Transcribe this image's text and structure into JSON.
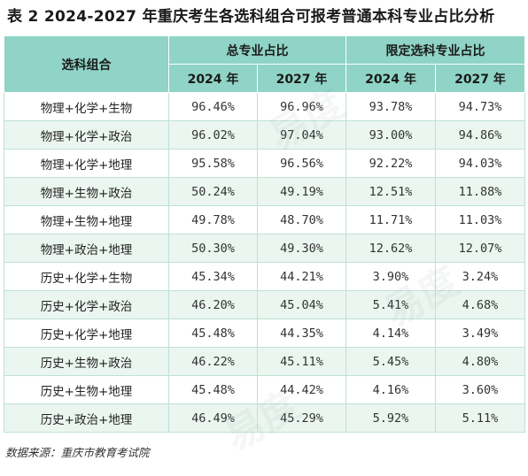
{
  "title": "表 2  2024-2027 年重庆考生各选科组合可报考普通本科专业占比分析",
  "header": {
    "combo_label": "选科组合",
    "group1": "总专业占比",
    "group2": "限定选科专业占比",
    "year_a": "2024 年",
    "year_b": "2027 年"
  },
  "rows": [
    {
      "combo": "物理+化学+生物",
      "total_2024": "96.46%",
      "total_2027": "96.96%",
      "limited_2024": "93.78%",
      "limited_2027": "94.73%"
    },
    {
      "combo": "物理+化学+政治",
      "total_2024": "96.02%",
      "total_2027": "97.04%",
      "limited_2024": "93.00%",
      "limited_2027": "94.86%"
    },
    {
      "combo": "物理+化学+地理",
      "total_2024": "95.58%",
      "total_2027": "96.56%",
      "limited_2024": "92.22%",
      "limited_2027": "94.03%"
    },
    {
      "combo": "物理+生物+政治",
      "total_2024": "50.24%",
      "total_2027": "49.19%",
      "limited_2024": "12.51%",
      "limited_2027": "11.88%"
    },
    {
      "combo": "物理+生物+地理",
      "total_2024": "49.78%",
      "total_2027": "48.70%",
      "limited_2024": "11.71%",
      "limited_2027": "11.03%"
    },
    {
      "combo": "物理+政治+地理",
      "total_2024": "50.30%",
      "total_2027": "49.30%",
      "limited_2024": "12.62%",
      "limited_2027": "12.07%"
    },
    {
      "combo": "历史+化学+生物",
      "total_2024": "45.34%",
      "total_2027": "44.21%",
      "limited_2024": "3.90%",
      "limited_2027": "3.24%"
    },
    {
      "combo": "历史+化学+政治",
      "total_2024": "46.20%",
      "total_2027": "45.04%",
      "limited_2024": "5.41%",
      "limited_2027": "4.68%"
    },
    {
      "combo": "历史+化学+地理",
      "total_2024": "45.48%",
      "total_2027": "44.35%",
      "limited_2024": "4.14%",
      "limited_2027": "3.49%"
    },
    {
      "combo": "历史+生物+政治",
      "total_2024": "46.22%",
      "total_2027": "45.11%",
      "limited_2024": "5.45%",
      "limited_2027": "4.80%"
    },
    {
      "combo": "历史+生物+地理",
      "total_2024": "45.48%",
      "total_2027": "44.42%",
      "limited_2024": "4.16%",
      "limited_2027": "3.60%"
    },
    {
      "combo": "历史+政治+地理",
      "total_2024": "46.49%",
      "total_2027": "45.29%",
      "limited_2024": "5.92%",
      "limited_2027": "5.11%"
    }
  ],
  "source": "数据来源：重庆市教育考试院",
  "watermark": "易度",
  "colors": {
    "header_bg": "#8fd4c6",
    "stripe_bg": "#eaf6ef",
    "border": "#bfe0d8"
  }
}
